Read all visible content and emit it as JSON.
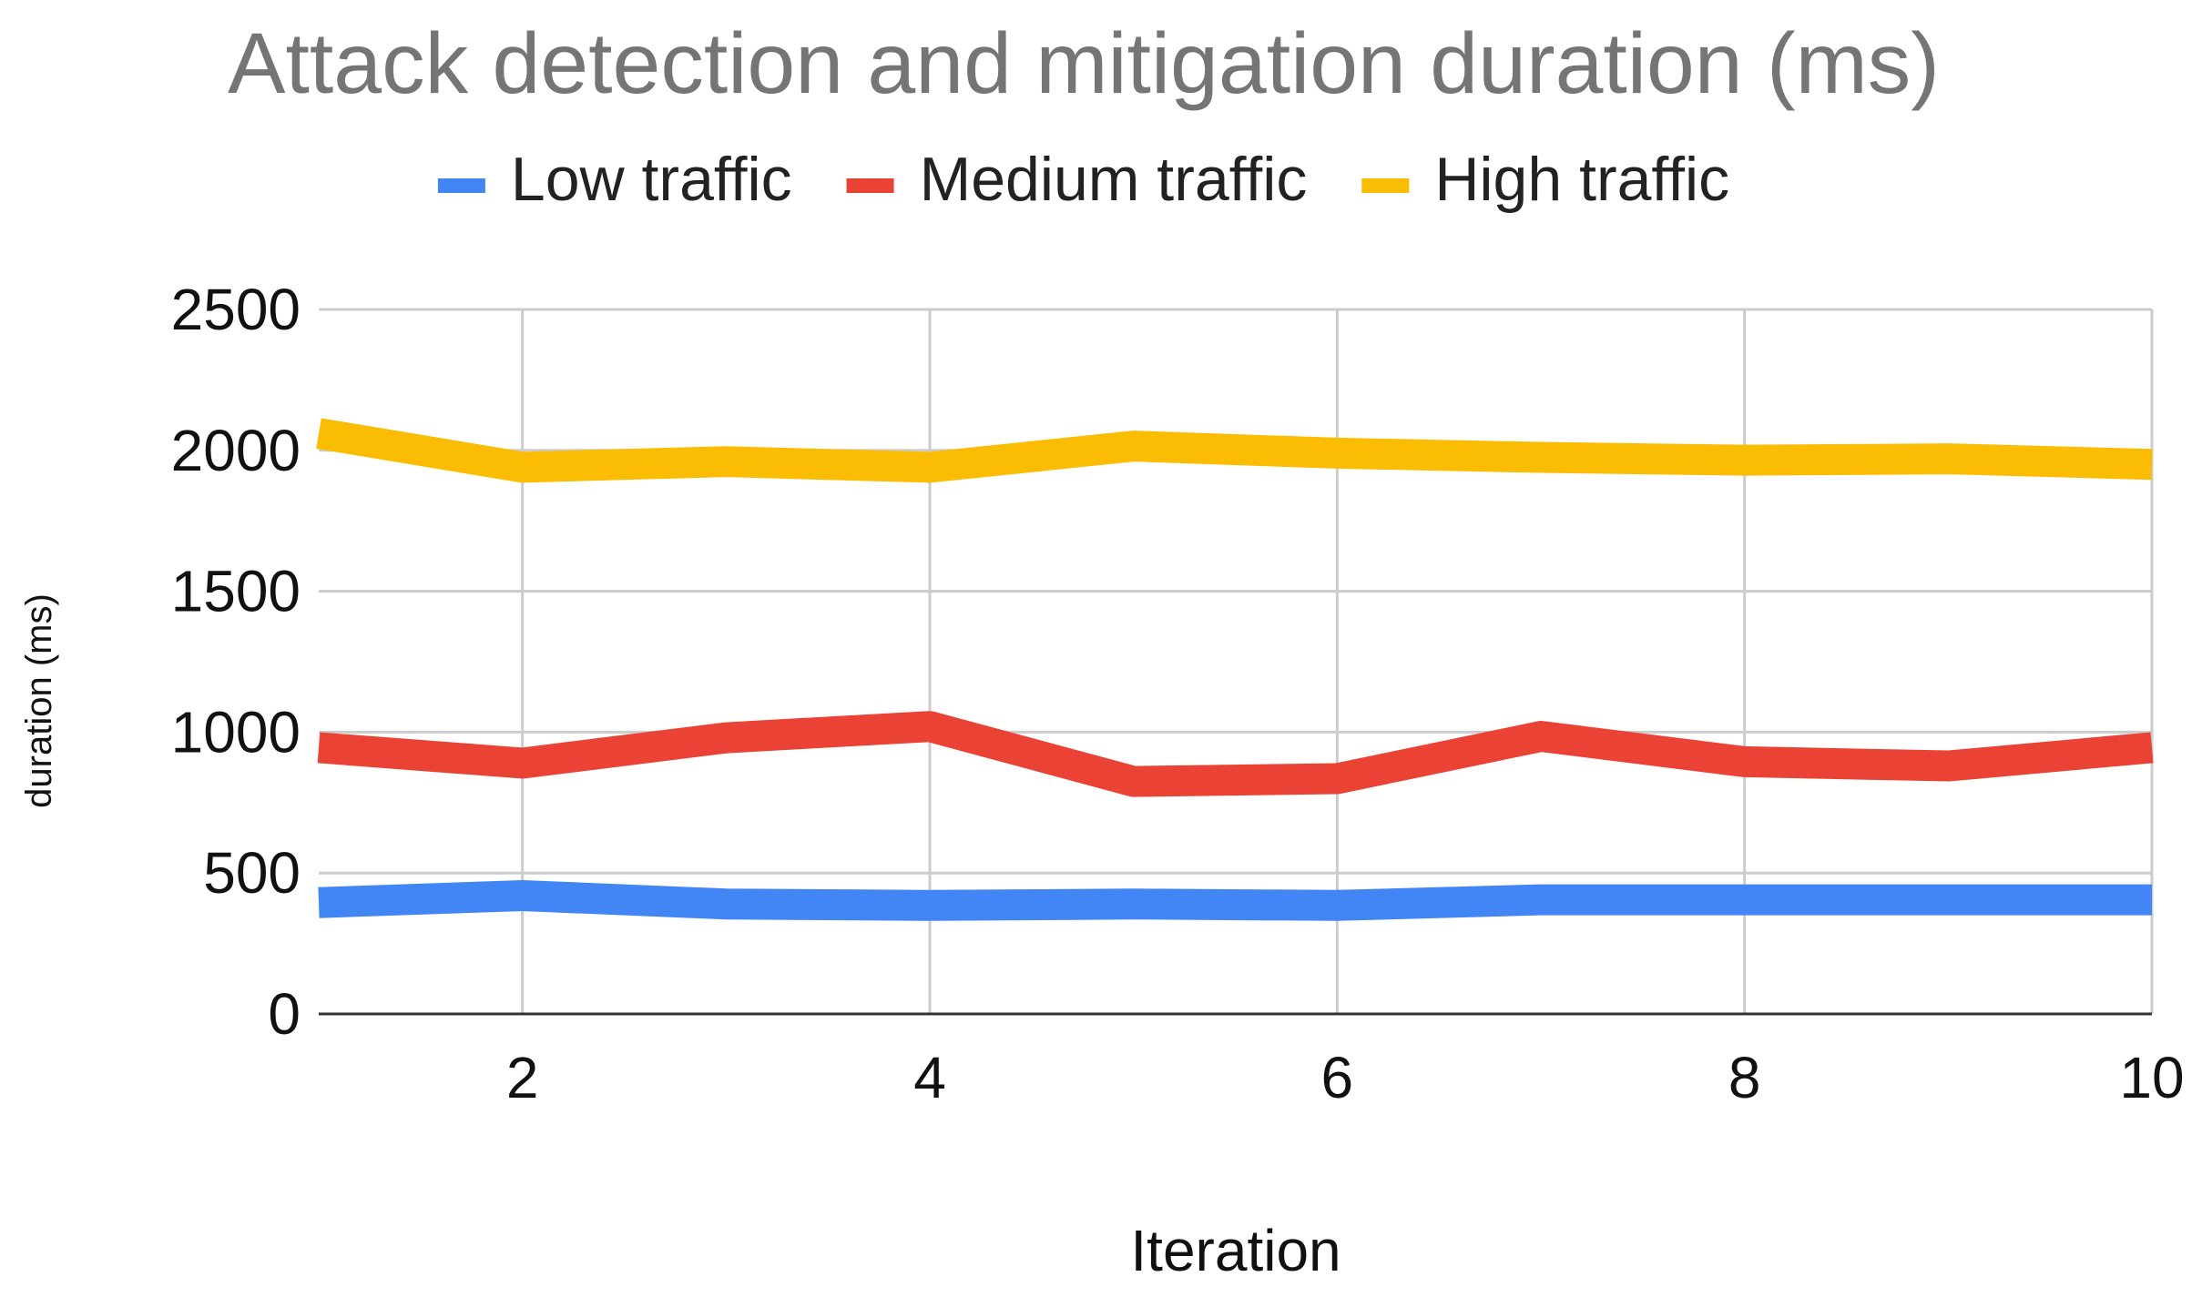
{
  "chart_data": {
    "type": "line",
    "title": "Attack detection and mitigation duration (ms)",
    "xlabel": "Iteration",
    "ylabel": "duration (ms)",
    "x": [
      1,
      2,
      3,
      4,
      5,
      6,
      7,
      8,
      9,
      10
    ],
    "xlim": [
      1,
      10
    ],
    "ylim": [
      0,
      2500
    ],
    "x_ticks": [
      2,
      4,
      6,
      8,
      10
    ],
    "y_ticks": [
      0,
      500,
      1000,
      1500,
      2000,
      2500
    ],
    "grid": true,
    "legend_position": "top",
    "series": [
      {
        "name": "Low traffic",
        "color": "#4285F4",
        "values": [
          395,
          420,
          390,
          385,
          390,
          385,
          405,
          405,
          405,
          405
        ]
      },
      {
        "name": "Medium traffic",
        "color": "#EA4335",
        "values": [
          945,
          890,
          980,
          1020,
          825,
          835,
          985,
          895,
          880,
          945
        ]
      },
      {
        "name": "High traffic",
        "color": "#FBBC04",
        "values": [
          2060,
          1940,
          1960,
          1940,
          2015,
          1990,
          1975,
          1965,
          1970,
          1950
        ]
      }
    ]
  }
}
